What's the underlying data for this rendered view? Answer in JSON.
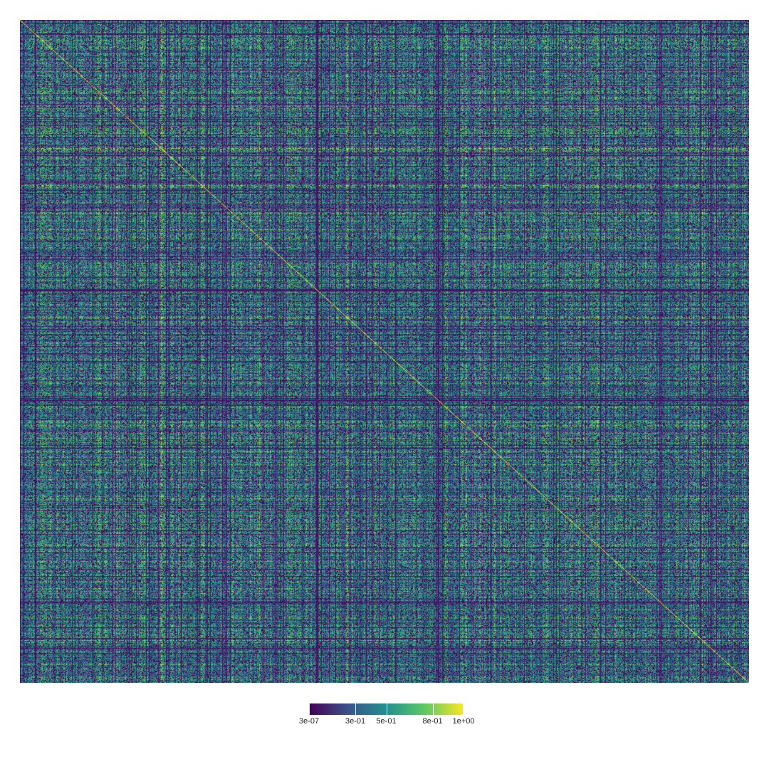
{
  "chart_data": {
    "type": "heatmap",
    "title": "",
    "xlabel": "",
    "ylabel": "",
    "grid": false,
    "legend_placement": "bottom",
    "matrix": {
      "rows": 1024,
      "cols": 1024,
      "symmetric": true,
      "diagonal_value": 1.0,
      "description_values": "dense pairwise similarity matrix, values mostly 0.1-0.6 with many near-zero cells"
    },
    "colorscale": {
      "name": "viridis",
      "min": 3e-07,
      "max": 1.0,
      "colors": [
        "#440154",
        "#3b528b",
        "#21908d",
        "#5dc963",
        "#fde725"
      ],
      "ticks": [
        {
          "label": "3e-07",
          "value": 3e-07,
          "frac": 0.0
        },
        {
          "label": "3e-01",
          "value": 0.3,
          "frac": 0.3
        },
        {
          "label": "5e-01",
          "value": 0.5,
          "frac": 0.5
        },
        {
          "label": "8e-01",
          "value": 0.8,
          "frac": 0.8
        },
        {
          "label": "1e+00",
          "value": 1.0,
          "frac": 1.0
        }
      ]
    }
  }
}
